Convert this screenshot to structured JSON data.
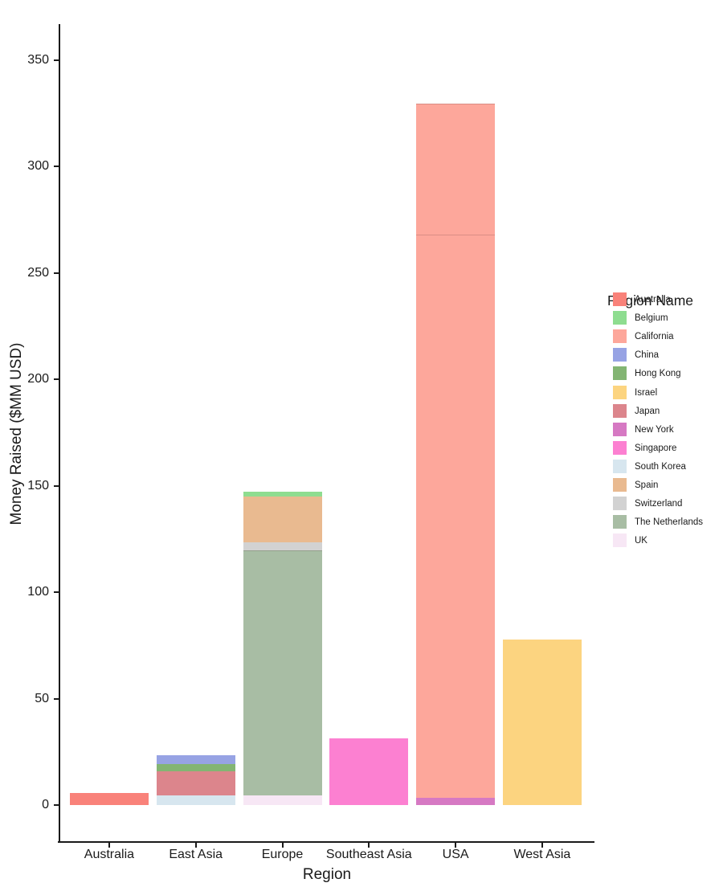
{
  "chart_data": {
    "type": "bar",
    "stacked": true,
    "title": "",
    "xlabel": "Region",
    "ylabel": "Money Raised ($MM USD)",
    "ylim": [
      0,
      370
    ],
    "yticks": [
      0,
      50,
      100,
      150,
      200,
      250,
      300,
      350
    ],
    "grid": "off",
    "legend_title": "Region Name",
    "legend_position": "right",
    "categories": [
      "Australia",
      "East Asia",
      "Europe",
      "Southeast Asia",
      "USA",
      "West Asia"
    ],
    "totals": [
      6,
      23,
      147,
      31,
      330,
      78
    ],
    "bars": [
      {
        "category": "Australia",
        "segments": [
          {
            "name": "Australia",
            "value": 5.7
          }
        ]
      },
      {
        "category": "East Asia",
        "segments": [
          {
            "name": "South Korea",
            "value": 4.5
          },
          {
            "name": "Japan",
            "value": 11.3
          },
          {
            "name": "Hong Kong",
            "value": 3.4
          },
          {
            "name": "China",
            "value": 4.2
          }
        ]
      },
      {
        "category": "Europe",
        "segments": [
          {
            "name": "UK",
            "value": 4.5
          },
          {
            "name": "The Netherlands",
            "value": 1.2
          },
          {
            "name": "The Netherlands",
            "value": 113.8,
            "divider_top": true
          },
          {
            "name": "Switzerland",
            "value": 3.8
          },
          {
            "name": "Spain",
            "value": 21.5
          },
          {
            "name": "Belgium",
            "value": 2.3
          }
        ]
      },
      {
        "category": "Southeast Asia",
        "segments": [
          {
            "name": "Singapore",
            "value": 31.3
          }
        ]
      },
      {
        "category": "USA",
        "segments": [
          {
            "name": "New York",
            "value": 3.4
          },
          {
            "name": "California",
            "value": 32.1
          },
          {
            "name": "California",
            "value": 232.5,
            "divider_top": true
          },
          {
            "name": "California",
            "value": 61.6,
            "divider_top": true
          }
        ]
      },
      {
        "category": "West Asia",
        "segments": [
          {
            "name": "Israel",
            "value": 77.8
          }
        ]
      }
    ],
    "legend_entries": [
      "Australia",
      "Belgium",
      "California",
      "China",
      "Hong Kong",
      "Israel",
      "Japan",
      "New York",
      "Singapore",
      "South Korea",
      "Spain",
      "Switzerland",
      "The Netherlands",
      "UK"
    ],
    "colors": {
      "Australia": "#f9827a",
      "Belgium": "#8edd90",
      "California": "#fda79b",
      "China": "#97a3e4",
      "Hong Kong": "#83b573",
      "Israel": "#fcd480",
      "Japan": "#dc858c",
      "New York": "#d679c3",
      "Singapore": "#fc80d1",
      "South Korea": "#d7e6ef",
      "Spain": "#e9ba90",
      "Switzerland": "#d2d2d2",
      "The Netherlands": "#a8bda4",
      "UK": "#f7e7f5"
    },
    "axis_color": "#1a1a1a"
  }
}
